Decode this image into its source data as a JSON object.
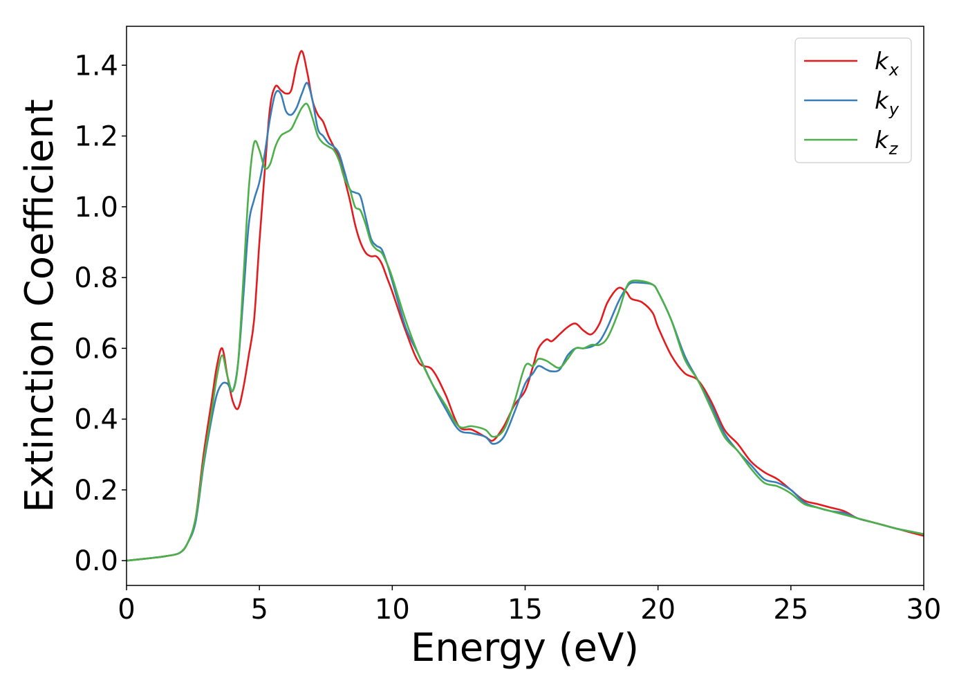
{
  "chart_data": {
    "type": "line",
    "title": "",
    "xlabel": "Energy (eV)",
    "ylabel": "Extinction Coefficient",
    "xlim": [
      0,
      30
    ],
    "ylim": [
      -0.07,
      1.51
    ],
    "xticks": [
      0,
      5,
      10,
      15,
      20,
      25,
      30
    ],
    "xtick_labels": [
      "0",
      "5",
      "10",
      "15",
      "20",
      "25",
      "30"
    ],
    "yticks": [
      0.0,
      0.2,
      0.4,
      0.6,
      0.8,
      1.0,
      1.2,
      1.4
    ],
    "ytick_labels": [
      "0.0",
      "0.2",
      "0.4",
      "0.6",
      "0.8",
      "1.0",
      "1.2",
      "1.4"
    ],
    "grid": false,
    "legend_position": "top-right",
    "series": [
      {
        "name": "k",
        "subscript": "x",
        "color": "#e41a1c",
        "x": [
          0,
          1,
          1.5,
          2,
          2.3,
          2.6,
          2.9,
          3.2,
          3.4,
          3.6,
          3.8,
          4.0,
          4.2,
          4.4,
          4.6,
          4.8,
          5.0,
          5.2,
          5.4,
          5.6,
          5.8,
          6.0,
          6.2,
          6.4,
          6.6,
          6.8,
          7.0,
          7.2,
          7.4,
          7.6,
          7.8,
          8.0,
          8.2,
          8.4,
          8.6,
          8.8,
          9.0,
          9.2,
          9.4,
          9.6,
          9.8,
          10.0,
          10.5,
          11.0,
          11.5,
          12.0,
          12.5,
          13.0,
          13.5,
          13.8,
          14.2,
          14.6,
          15.0,
          15.3,
          15.5,
          15.8,
          16.0,
          16.3,
          16.6,
          16.9,
          17.2,
          17.5,
          17.8,
          18.1,
          18.5,
          18.8,
          19.0,
          19.4,
          19.8,
          20.0,
          20.5,
          21.0,
          21.5,
          22.0,
          22.5,
          23.0,
          23.5,
          24.0,
          24.5,
          25.0,
          25.5,
          26.0,
          26.5,
          27.0,
          27.5,
          28.0,
          28.5,
          29.0,
          30.0
        ],
        "y": [
          0.0,
          0.008,
          0.013,
          0.022,
          0.05,
          0.12,
          0.3,
          0.45,
          0.55,
          0.6,
          0.52,
          0.45,
          0.43,
          0.49,
          0.58,
          0.68,
          0.9,
          1.1,
          1.28,
          1.34,
          1.33,
          1.32,
          1.33,
          1.4,
          1.44,
          1.38,
          1.3,
          1.26,
          1.24,
          1.2,
          1.17,
          1.14,
          1.08,
          1.02,
          0.95,
          0.9,
          0.87,
          0.86,
          0.86,
          0.84,
          0.8,
          0.76,
          0.65,
          0.56,
          0.54,
          0.47,
          0.38,
          0.37,
          0.35,
          0.34,
          0.38,
          0.44,
          0.48,
          0.55,
          0.6,
          0.625,
          0.62,
          0.64,
          0.66,
          0.67,
          0.65,
          0.64,
          0.67,
          0.73,
          0.77,
          0.76,
          0.74,
          0.73,
          0.7,
          0.66,
          0.58,
          0.53,
          0.51,
          0.45,
          0.37,
          0.33,
          0.28,
          0.25,
          0.23,
          0.2,
          0.17,
          0.16,
          0.15,
          0.14,
          0.12,
          0.11,
          0.1,
          0.09,
          0.07
        ]
      },
      {
        "name": "k",
        "subscript": "y",
        "color": "#377eb8",
        "x": [
          0,
          1,
          1.5,
          2,
          2.3,
          2.6,
          2.9,
          3.2,
          3.4,
          3.6,
          3.8,
          4.0,
          4.2,
          4.4,
          4.6,
          4.8,
          5.0,
          5.2,
          5.4,
          5.6,
          5.8,
          6.0,
          6.2,
          6.4,
          6.6,
          6.8,
          7.0,
          7.2,
          7.4,
          7.6,
          7.8,
          8.0,
          8.2,
          8.4,
          8.6,
          8.8,
          9.0,
          9.2,
          9.4,
          9.6,
          9.8,
          10.0,
          10.5,
          11.0,
          11.5,
          12.0,
          12.5,
          13.0,
          13.5,
          13.8,
          14.2,
          14.6,
          15.0,
          15.3,
          15.5,
          15.8,
          16.0,
          16.3,
          16.6,
          16.9,
          17.2,
          17.5,
          17.8,
          18.1,
          18.5,
          18.8,
          19.0,
          19.4,
          19.8,
          20.0,
          20.5,
          21.0,
          21.5,
          22.0,
          22.5,
          23.0,
          23.5,
          24.0,
          24.5,
          25.0,
          25.5,
          26.0,
          26.5,
          27.0,
          27.5,
          28.0,
          28.5,
          29.0,
          30.0
        ],
        "y": [
          0.0,
          0.008,
          0.013,
          0.022,
          0.05,
          0.11,
          0.27,
          0.4,
          0.47,
          0.5,
          0.5,
          0.48,
          0.56,
          0.75,
          0.95,
          1.02,
          1.07,
          1.15,
          1.25,
          1.32,
          1.32,
          1.27,
          1.26,
          1.28,
          1.32,
          1.35,
          1.3,
          1.22,
          1.2,
          1.18,
          1.17,
          1.15,
          1.1,
          1.05,
          1.04,
          1.03,
          0.97,
          0.91,
          0.89,
          0.88,
          0.84,
          0.79,
          0.66,
          0.58,
          0.5,
          0.43,
          0.37,
          0.36,
          0.35,
          0.33,
          0.35,
          0.42,
          0.5,
          0.53,
          0.55,
          0.54,
          0.535,
          0.54,
          0.58,
          0.6,
          0.6,
          0.605,
          0.62,
          0.66,
          0.73,
          0.77,
          0.785,
          0.785,
          0.78,
          0.76,
          0.68,
          0.58,
          0.51,
          0.44,
          0.36,
          0.31,
          0.27,
          0.23,
          0.22,
          0.2,
          0.165,
          0.15,
          0.14,
          0.135,
          0.12,
          0.11,
          0.1,
          0.09,
          0.075
        ]
      },
      {
        "name": "k",
        "subscript": "z",
        "color": "#4daf4a",
        "x": [
          0,
          1,
          1.5,
          2,
          2.3,
          2.6,
          2.9,
          3.2,
          3.4,
          3.6,
          3.8,
          4.0,
          4.2,
          4.4,
          4.6,
          4.8,
          5.0,
          5.2,
          5.4,
          5.6,
          5.8,
          6.0,
          6.2,
          6.4,
          6.6,
          6.8,
          7.0,
          7.2,
          7.4,
          7.6,
          7.8,
          8.0,
          8.2,
          8.4,
          8.6,
          8.8,
          9.0,
          9.2,
          9.4,
          9.6,
          9.8,
          10.0,
          10.5,
          11.0,
          11.5,
          12.0,
          12.5,
          13.0,
          13.5,
          13.8,
          14.2,
          14.6,
          15.0,
          15.3,
          15.5,
          15.8,
          16.0,
          16.3,
          16.6,
          16.9,
          17.2,
          17.5,
          17.8,
          18.1,
          18.5,
          18.8,
          19.0,
          19.4,
          19.8,
          20.0,
          20.5,
          21.0,
          21.5,
          22.0,
          22.5,
          23.0,
          23.5,
          24.0,
          24.5,
          25.0,
          25.5,
          26.0,
          26.5,
          27.0,
          27.5,
          28.0,
          28.5,
          29.0,
          30.0
        ],
        "y": [
          0.0,
          0.008,
          0.013,
          0.022,
          0.05,
          0.12,
          0.28,
          0.42,
          0.52,
          0.58,
          0.52,
          0.48,
          0.56,
          0.8,
          1.05,
          1.18,
          1.16,
          1.11,
          1.12,
          1.17,
          1.2,
          1.21,
          1.22,
          1.25,
          1.28,
          1.29,
          1.25,
          1.2,
          1.18,
          1.17,
          1.16,
          1.13,
          1.08,
          1.05,
          1.0,
          0.99,
          0.95,
          0.9,
          0.88,
          0.87,
          0.84,
          0.8,
          0.68,
          0.58,
          0.5,
          0.44,
          0.38,
          0.38,
          0.37,
          0.35,
          0.37,
          0.45,
          0.55,
          0.55,
          0.57,
          0.565,
          0.555,
          0.545,
          0.57,
          0.6,
          0.6,
          0.61,
          0.61,
          0.63,
          0.7,
          0.77,
          0.79,
          0.79,
          0.78,
          0.76,
          0.68,
          0.57,
          0.51,
          0.43,
          0.35,
          0.31,
          0.26,
          0.22,
          0.21,
          0.19,
          0.16,
          0.15,
          0.14,
          0.13,
          0.12,
          0.11,
          0.1,
          0.09,
          0.075
        ]
      }
    ]
  }
}
